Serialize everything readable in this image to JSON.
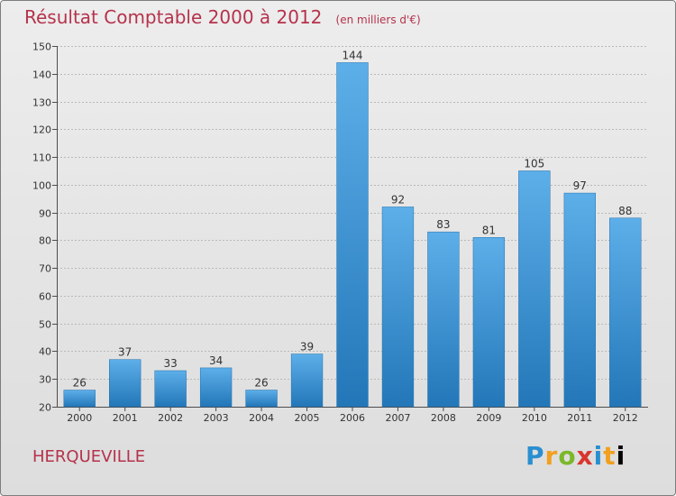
{
  "title": {
    "main": "Résultat Comptable 2000 à 2012",
    "sub": "(en milliers d'€)"
  },
  "commune": "HERQUEVILLE",
  "brand": {
    "label": "Proxiti",
    "letters": [
      "P",
      "r",
      "o",
      "x",
      "i",
      "t",
      "i"
    ]
  },
  "colors": {
    "title": "#b5324b",
    "bar_top": "#5dafe9",
    "bar_bottom": "#2377b8",
    "grid": "#b9b9b9",
    "axis": "#4d4d4d",
    "label": "#333333"
  },
  "chart_data": {
    "type": "bar",
    "title": "Résultat Comptable 2000 à 2012",
    "subtitle": "(en milliers d'€)",
    "xlabel": "",
    "ylabel": "",
    "categories": [
      "2000",
      "2001",
      "2002",
      "2003",
      "2004",
      "2005",
      "2006",
      "2007",
      "2008",
      "2009",
      "2010",
      "2011",
      "2012"
    ],
    "values": [
      26,
      37,
      33,
      34,
      26,
      39,
      144,
      92,
      83,
      81,
      105,
      97,
      88
    ],
    "ylim": [
      20,
      150
    ],
    "yticks": [
      20,
      30,
      40,
      50,
      60,
      70,
      80,
      90,
      100,
      110,
      120,
      130,
      140,
      150
    ],
    "grid": true,
    "legend": "none"
  }
}
